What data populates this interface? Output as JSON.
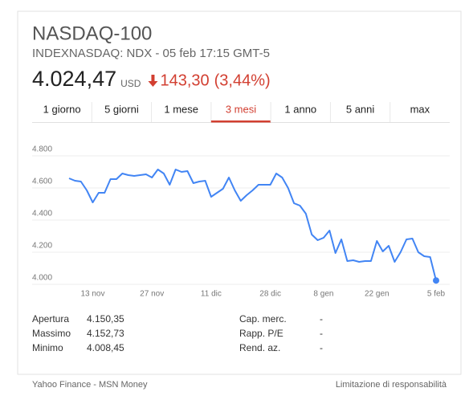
{
  "header": {
    "title": "NASDAQ-100",
    "subtitle": "INDEXNASDAQ: NDX - 05 feb 17:15 GMT-5",
    "price": "4.024,47",
    "currency": "USD",
    "change": "143,30",
    "change_percent": "(3,44%)"
  },
  "tabs": {
    "items": [
      "1 giorno",
      "5 giorni",
      "1 mese",
      "3 mesi",
      "1 anno",
      "5 anni",
      "max"
    ],
    "active": 3
  },
  "chart_data": {
    "type": "line",
    "color": "#4285f4",
    "grid": true,
    "categories": [
      null,
      null,
      null,
      null,
      "13 nov",
      null,
      null,
      null,
      null,
      null,
      null,
      null,
      null,
      null,
      "27 nov",
      null,
      null,
      null,
      null,
      null,
      null,
      null,
      null,
      null,
      "11 dic",
      null,
      null,
      null,
      null,
      null,
      null,
      null,
      null,
      null,
      "28 dic",
      null,
      null,
      null,
      null,
      null,
      null,
      null,
      null,
      "8 gen",
      null,
      null,
      null,
      null,
      null,
      null,
      null,
      null,
      "22 gen",
      null,
      null,
      null,
      null,
      null,
      null,
      null,
      null,
      null,
      "5 feb"
    ],
    "values": [
      4660,
      4645,
      4640,
      4585,
      4510,
      4570,
      4570,
      4655,
      4655,
      4690,
      4680,
      4675,
      4680,
      4685,
      4665,
      4715,
      4690,
      4620,
      4715,
      4700,
      4705,
      4630,
      4640,
      4645,
      4545,
      4570,
      4595,
      4665,
      4585,
      4520,
      4555,
      4585,
      4620,
      4620,
      4620,
      4690,
      4665,
      4600,
      4505,
      4490,
      4440,
      4310,
      4275,
      4290,
      4335,
      4195,
      4280,
      4145,
      4150,
      4140,
      4145,
      4145,
      4270,
      4205,
      4240,
      4140,
      4200,
      4280,
      4285,
      4200,
      4175,
      4170,
      4024
    ],
    "ylim": [
      3900,
      4900
    ],
    "yticks": [
      {
        "value": 4000,
        "label": "4.000"
      },
      {
        "value": 4200,
        "label": "4.200"
      },
      {
        "value": 4400,
        "label": "4.400"
      },
      {
        "value": 4600,
        "label": "4.600"
      },
      {
        "value": 4800,
        "label": "4.800"
      }
    ]
  },
  "stats": {
    "left": [
      {
        "label": "Apertura",
        "value": "4.150,35"
      },
      {
        "label": "Massimo",
        "value": "4.152,73"
      },
      {
        "label": "Minimo",
        "value": "4.008,45"
      }
    ],
    "right": [
      {
        "label": "Cap. merc.",
        "value": "-"
      },
      {
        "label": "Rapp. P/E",
        "value": "-"
      },
      {
        "label": "Rend. az.",
        "value": "-"
      }
    ]
  },
  "footer": {
    "source": "Yahoo Finance - MSN Money",
    "disclaimer": "Limitazione di responsabilità"
  }
}
